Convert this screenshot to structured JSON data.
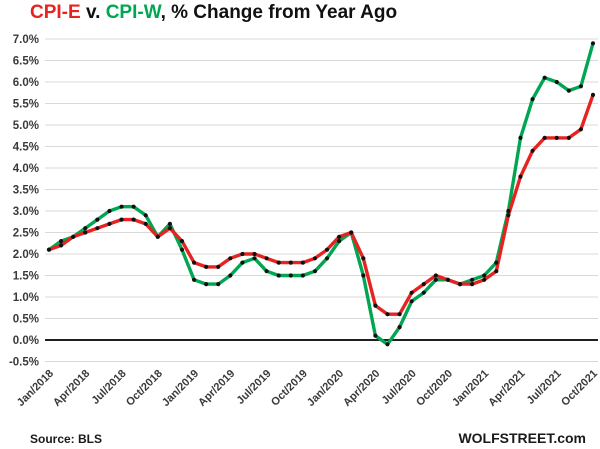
{
  "title": {
    "series_1": "CPI-E",
    "connector": " v. ",
    "series_2": "CPI-W",
    "suffix": ", % Change from Year Ago"
  },
  "footer": {
    "source": "Source: BLS",
    "site": "WOLFSTREET.com"
  },
  "colors": {
    "cpi_e": "#e62320",
    "cpi_w": "#00a651",
    "gridline": "#d9d9d9",
    "zero_line": "#000000",
    "marker": "#111111",
    "axis_text": "#3a3a3a"
  },
  "chart_data": {
    "type": "line",
    "title": "CPI-E v. CPI-W, % Change from Year Ago",
    "xlabel": "",
    "ylabel": "",
    "ylim": [
      -0.5,
      7.0
    ],
    "y_tick_step": 0.5,
    "y_tick_format": "0.0%",
    "grid": true,
    "legend_position": "in-title",
    "x_tick_step": 3,
    "x": [
      "Jan/2018",
      "Feb/2018",
      "Mar/2018",
      "Apr/2018",
      "May/2018",
      "Jun/2018",
      "Jul/2018",
      "Aug/2018",
      "Sep/2018",
      "Oct/2018",
      "Nov/2018",
      "Dec/2018",
      "Jan/2019",
      "Feb/2019",
      "Mar/2019",
      "Apr/2019",
      "May/2019",
      "Jun/2019",
      "Jul/2019",
      "Aug/2019",
      "Sep/2019",
      "Oct/2019",
      "Nov/2019",
      "Dec/2019",
      "Jan/2020",
      "Feb/2020",
      "Mar/2020",
      "Apr/2020",
      "May/2020",
      "Jun/2020",
      "Jul/2020",
      "Aug/2020",
      "Sep/2020",
      "Oct/2020",
      "Nov/2020",
      "Dec/2020",
      "Jan/2021",
      "Feb/2021",
      "Mar/2021",
      "Apr/2021",
      "May/2021",
      "Jun/2021",
      "Jul/2021",
      "Aug/2021",
      "Sep/2021",
      "Oct/2021"
    ],
    "series": [
      {
        "name": "CPI-E",
        "color_key": "cpi_e",
        "values": [
          2.1,
          2.2,
          2.4,
          2.5,
          2.6,
          2.7,
          2.8,
          2.8,
          2.7,
          2.4,
          2.6,
          2.3,
          1.8,
          1.7,
          1.7,
          1.9,
          2.0,
          2.0,
          1.9,
          1.8,
          1.8,
          1.8,
          1.9,
          2.1,
          2.4,
          2.5,
          1.9,
          0.8,
          0.6,
          0.6,
          1.1,
          1.3,
          1.5,
          1.4,
          1.3,
          1.3,
          1.4,
          1.6,
          2.9,
          3.8,
          4.4,
          4.7,
          4.7,
          4.7,
          4.9,
          5.7
        ]
      },
      {
        "name": "CPI-W",
        "color_key": "cpi_w",
        "values": [
          2.1,
          2.3,
          2.4,
          2.6,
          2.8,
          3.0,
          3.1,
          3.1,
          2.9,
          2.4,
          2.7,
          2.1,
          1.4,
          1.3,
          1.3,
          1.5,
          1.8,
          1.9,
          1.6,
          1.5,
          1.5,
          1.5,
          1.6,
          1.9,
          2.3,
          2.5,
          1.5,
          0.1,
          -0.1,
          0.3,
          0.9,
          1.1,
          1.4,
          1.4,
          1.3,
          1.4,
          1.5,
          1.8,
          3.0,
          4.7,
          5.6,
          6.1,
          6.0,
          5.8,
          5.9,
          6.9
        ]
      }
    ]
  }
}
